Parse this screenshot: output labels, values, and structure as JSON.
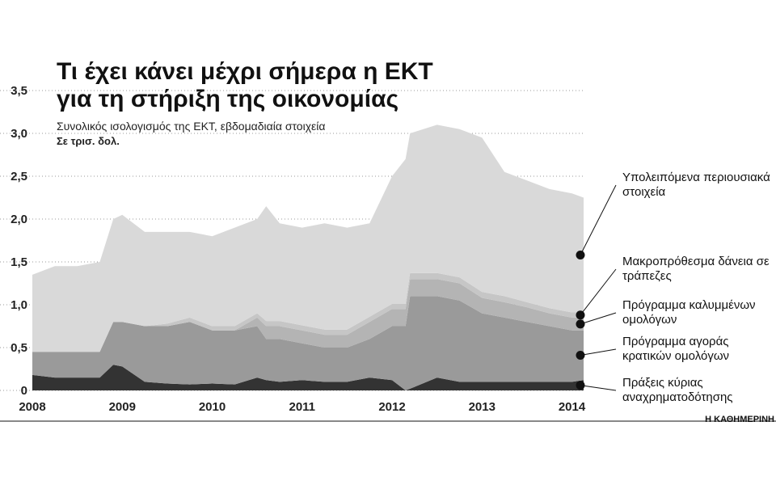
{
  "chart_data": {
    "type": "stacked-area",
    "title": [
      "Τι έχει κάνει μέχρι σήμερα η ΕΚΤ",
      "για τη στήριξη της οικονομίας"
    ],
    "subtitle": "Συνολικός ισολογισμός της ΕΚΤ, εβδομαδιαία στοιχεία",
    "unit_label": "Σε τρισ. δολ.",
    "source": "Η ΚΑΘΗΜΕΡΙΝΗ",
    "x": [
      2008,
      2008.25,
      2008.5,
      2008.75,
      2008.9,
      2009,
      2009.25,
      2009.5,
      2009.75,
      2010,
      2010.25,
      2010.5,
      2010.6,
      2010.75,
      2011,
      2011.25,
      2011.5,
      2011.75,
      2012,
      2012.15,
      2012.2,
      2012.5,
      2012.75,
      2013,
      2013.25,
      2013.5,
      2013.75,
      2014,
      2014.13
    ],
    "series": [
      {
        "name": "Πράξεις κύριας αναχρηματοδότησης",
        "color": "#333333",
        "values": [
          0.18,
          0.15,
          0.15,
          0.15,
          0.3,
          0.28,
          0.1,
          0.08,
          0.07,
          0.08,
          0.07,
          0.15,
          0.12,
          0.1,
          0.12,
          0.1,
          0.1,
          0.15,
          0.12,
          0.0,
          0.02,
          0.15,
          0.1,
          0.1,
          0.1,
          0.1,
          0.1,
          0.1,
          0.12
        ]
      },
      {
        "name": "Πρόγραμμα αγοράς κρατικών ομολόγων",
        "color": "#9a9a9a",
        "values": [
          0.27,
          0.3,
          0.3,
          0.3,
          0.5,
          0.52,
          0.65,
          0.67,
          0.73,
          0.62,
          0.63,
          0.6,
          0.48,
          0.5,
          0.43,
          0.4,
          0.4,
          0.45,
          0.63,
          0.75,
          1.08,
          0.95,
          0.95,
          0.8,
          0.75,
          0.7,
          0.65,
          0.6,
          0.58
        ]
      },
      {
        "name": "Πρόγραμμα καλυμμένων ομολόγων",
        "color": "#b4b4b4",
        "values": [
          0,
          0,
          0,
          0,
          0,
          0,
          0,
          0,
          0,
          0,
          0,
          0.1,
          0.15,
          0.15,
          0.15,
          0.15,
          0.15,
          0.2,
          0.2,
          0.2,
          0.2,
          0.2,
          0.2,
          0.18,
          0.18,
          0.17,
          0.15,
          0.15,
          0.15
        ]
      },
      {
        "name": "Μακροπρόθεσμα δάνεια σε τράπεζες",
        "color": "#c6c6c6",
        "values": [
          0,
          0,
          0,
          0,
          0,
          0,
          0,
          0.03,
          0.05,
          0.05,
          0.05,
          0.05,
          0.06,
          0.06,
          0.06,
          0.06,
          0.06,
          0.06,
          0.06,
          0.06,
          0.07,
          0.07,
          0.07,
          0.07,
          0.07,
          0.06,
          0.06,
          0.06,
          0.06
        ]
      },
      {
        "name": "Υπολειπόμενα περιουσιακά στοιχεία",
        "color": "#d9d9d9",
        "values": [
          0.9,
          1.0,
          1.0,
          1.05,
          1.2,
          1.25,
          1.1,
          1.07,
          1.0,
          1.05,
          1.15,
          1.1,
          1.34,
          1.14,
          1.14,
          1.24,
          1.19,
          1.09,
          1.49,
          1.69,
          1.63,
          1.73,
          1.73,
          1.8,
          1.45,
          1.42,
          1.39,
          1.39,
          1.34
        ]
      }
    ],
    "xlim": [
      2008,
      2014.13
    ],
    "xticks": [
      2008,
      2009,
      2010,
      2011,
      2012,
      2013,
      2014
    ],
    "ylim": [
      0,
      3.5
    ],
    "yticks": [
      0,
      {
        "value": 0.5,
        "label": "0,5"
      },
      {
        "value": 1,
        "label": "1,0"
      },
      {
        "value": 1.5,
        "label": "1,5"
      },
      {
        "value": 2,
        "label": "2,0"
      },
      {
        "value": 2.5,
        "label": "2,5"
      },
      {
        "value": 3,
        "label": "3,0"
      },
      {
        "value": 3.5,
        "label": "3,5"
      }
    ],
    "grid": true
  }
}
